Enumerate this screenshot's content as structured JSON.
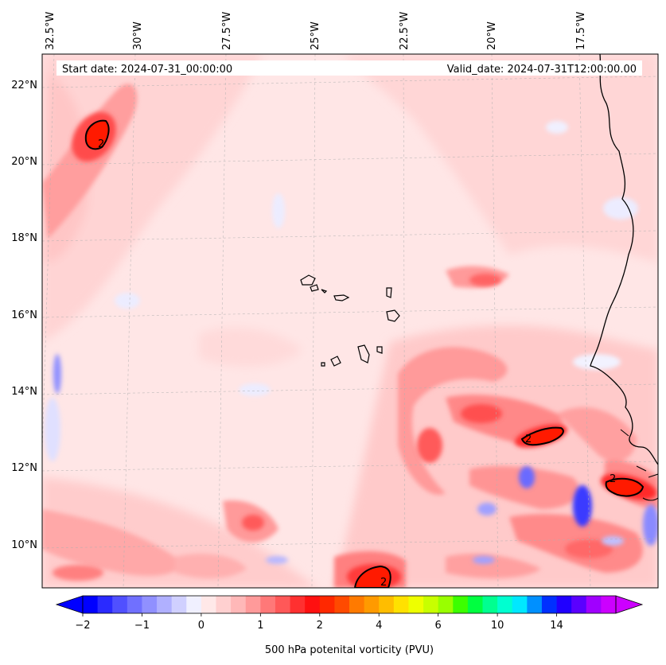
{
  "header": {
    "start_date": "Start date: 2024-07-31_00:00:00",
    "valid_date": "Valid_date: 2024-07-31T12:00:00.00"
  },
  "axes": {
    "lon_labels": [
      "32.5°W",
      "30°W",
      "27.5°W",
      "25°W",
      "22.5°W",
      "20°W",
      "17.5°W"
    ],
    "lat_labels": [
      "22°N",
      "20°N",
      "18°N",
      "16°N",
      "14°N",
      "12°N",
      "10°N"
    ]
  },
  "contour_label": "2",
  "colorbar": {
    "label": "500 hPa potenital vorticity (PVU)",
    "tick_labels": [
      "−2",
      "−1",
      "0",
      "1",
      "2",
      "4",
      "6",
      "10",
      "14"
    ],
    "colors": [
      "#0000ff",
      "#2a2aff",
      "#5050ff",
      "#7070ff",
      "#9090ff",
      "#b0b0ff",
      "#d0d0ff",
      "#f0f0ff",
      "#ffe8e8",
      "#ffd0d0",
      "#ffb8b8",
      "#ff9a9a",
      "#ff7878",
      "#ff5858",
      "#ff3030",
      "#ff1010",
      "#ff2800",
      "#ff4a00",
      "#ff7a00",
      "#ff9a00",
      "#ffbd00",
      "#ffe100",
      "#eeff00",
      "#c8ff00",
      "#99ff00",
      "#3cff00",
      "#00ff40",
      "#00ff90",
      "#00ffd0",
      "#00e8ff",
      "#0090ff",
      "#0030ff",
      "#2000ff",
      "#5a00ff",
      "#a000ff",
      "#cc00ff"
    ],
    "under_color": "#0000ff",
    "over_color": "#cc00ff"
  }
}
